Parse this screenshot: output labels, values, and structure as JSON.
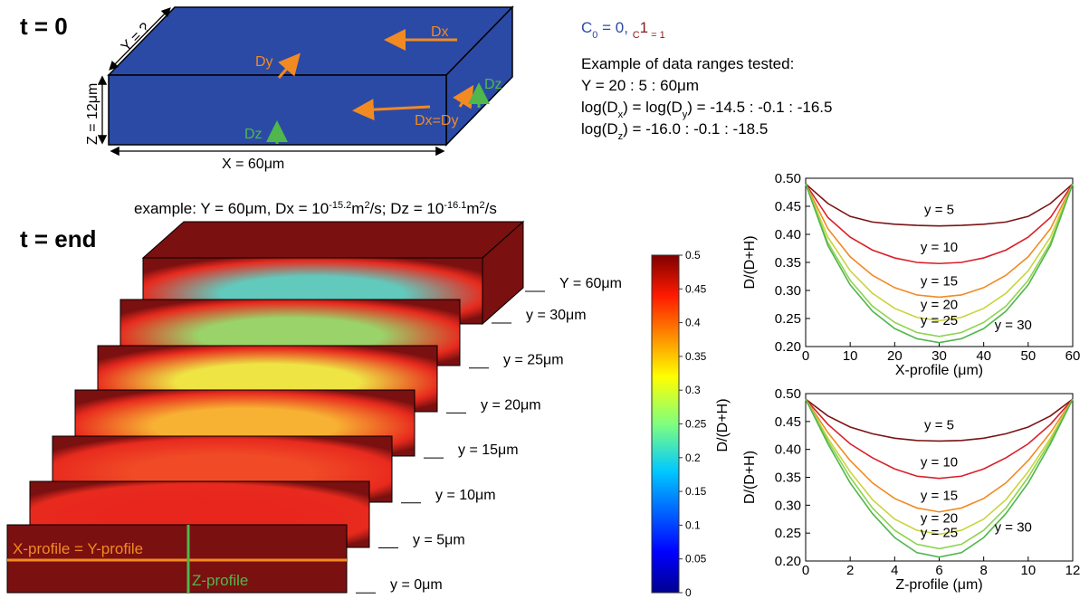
{
  "t0_label": "t = 0",
  "tend_label": "t = end",
  "box": {
    "y_label": "Y = ?",
    "z_label": "Z = 12μm",
    "x_label": "X = 60μm",
    "arrows": [
      "Dx",
      "Dy",
      "Dx=Dy",
      "Dz",
      "Dz"
    ]
  },
  "initial_conditions": [
    "C",
    "0",
    " = 0, ",
    "C",
    "1",
    " = 1"
  ],
  "ranges_title": "Example of data ranges tested:",
  "ranges": [
    [
      "Y = 20 : 5 : 60μm"
    ],
    [
      "log(D",
      "x",
      ") = log(D",
      "y",
      ") = -14.5 : -0.1 : -16.5"
    ],
    [
      "log(D",
      "z",
      ") = -16.0 : -0.1 : -18.5"
    ]
  ],
  "example": [
    "example: Y = 60μm, Dx = 10",
    "-15.2",
    "m",
    "2",
    "/s; Dz = 10",
    "-16.1",
    "m",
    "2",
    "/s"
  ],
  "slices": [
    "Y = 60μm",
    "y = 30μm",
    "y = 25μm",
    "y = 20μm",
    "y = 15μm",
    "y = 10μm",
    "y = 5μm",
    "y = 0μm"
  ],
  "profiles": {
    "x_profile": "X-profile = Y-profile",
    "z_profile": "Z-profile"
  },
  "colorbar": {
    "label": "D/(D+H)",
    "lim": [
      0,
      0.5
    ],
    "ticks": [
      0,
      0.05,
      0.1,
      0.15,
      0.2,
      0.25,
      0.3,
      0.35,
      0.4,
      0.45,
      0.5
    ]
  },
  "chart_data": [
    {
      "type": "line",
      "x_label": "X-profile (μm)",
      "y_label": "D/(D+H)",
      "x": [
        0,
        5,
        10,
        15,
        20,
        25,
        30,
        35,
        40,
        45,
        50,
        55,
        60
      ],
      "xlim": [
        0,
        60
      ],
      "xticks": [
        0,
        10,
        20,
        30,
        40,
        50,
        60
      ],
      "ylim": [
        0.2,
        0.5
      ],
      "yticks": [
        {
          "value": 0.2,
          "label": "0.20"
        },
        0.25,
        {
          "value": 0.3,
          "label": "0.30"
        },
        0.35,
        {
          "value": 0.4,
          "label": "0.40"
        },
        0.45,
        {
          "value": 0.5,
          "label": "0.50"
        }
      ],
      "series": [
        {
          "name": "y = 5",
          "color": "#7a1414",
          "values": [
            0.49,
            0.455,
            0.432,
            0.422,
            0.418,
            0.416,
            0.415,
            0.416,
            0.418,
            0.422,
            0.432,
            0.455,
            0.49
          ]
        },
        {
          "name": "y = 10",
          "color": "#d9202a",
          "values": [
            0.49,
            0.43,
            0.395,
            0.372,
            0.358,
            0.35,
            0.348,
            0.35,
            0.358,
            0.372,
            0.395,
            0.43,
            0.49
          ]
        },
        {
          "name": "y = 15",
          "color": "#f28a22",
          "values": [
            0.49,
            0.41,
            0.36,
            0.327,
            0.305,
            0.292,
            0.288,
            0.292,
            0.305,
            0.327,
            0.36,
            0.41,
            0.49
          ]
        },
        {
          "name": "y = 20",
          "color": "#c9d43c",
          "values": [
            0.49,
            0.395,
            0.335,
            0.295,
            0.268,
            0.252,
            0.246,
            0.252,
            0.268,
            0.295,
            0.335,
            0.395,
            0.49
          ]
        },
        {
          "name": "y = 25",
          "color": "#8fd24e",
          "values": [
            0.49,
            0.385,
            0.318,
            0.272,
            0.243,
            0.225,
            0.218,
            0.225,
            0.243,
            0.272,
            0.318,
            0.385,
            0.49
          ]
        },
        {
          "name": "y = 30",
          "color": "#4fb74c",
          "values": [
            0.49,
            0.38,
            0.31,
            0.263,
            0.232,
            0.214,
            0.207,
            0.214,
            0.232,
            0.263,
            0.31,
            0.38,
            0.49
          ]
        }
      ]
    },
    {
      "type": "line",
      "x_label": "Z-profile (μm)",
      "y_label": "D/(D+H)",
      "x": [
        0,
        1,
        2,
        3,
        4,
        5,
        6,
        7,
        8,
        9,
        10,
        11,
        12
      ],
      "xlim": [
        0,
        12
      ],
      "xticks": [
        0,
        2,
        4,
        6,
        8,
        10,
        12
      ],
      "ylim": [
        0.2,
        0.5
      ],
      "yticks": [
        {
          "value": 0.2,
          "label": "0.20"
        },
        0.25,
        {
          "value": 0.3,
          "label": "0.30"
        },
        0.35,
        {
          "value": 0.4,
          "label": "0.40"
        },
        0.45,
        {
          "value": 0.5,
          "label": "0.50"
        }
      ],
      "series": [
        {
          "name": "y = 5",
          "color": "#7a1414",
          "values": [
            0.49,
            0.46,
            0.44,
            0.428,
            0.42,
            0.416,
            0.415,
            0.416,
            0.42,
            0.428,
            0.44,
            0.46,
            0.49
          ]
        },
        {
          "name": "y = 10",
          "color": "#d9202a",
          "values": [
            0.49,
            0.445,
            0.41,
            0.385,
            0.365,
            0.352,
            0.348,
            0.352,
            0.365,
            0.385,
            0.41,
            0.445,
            0.49
          ]
        },
        {
          "name": "y = 15",
          "color": "#f28a22",
          "values": [
            0.49,
            0.43,
            0.38,
            0.34,
            0.312,
            0.295,
            0.288,
            0.295,
            0.312,
            0.34,
            0.38,
            0.43,
            0.49
          ]
        },
        {
          "name": "y = 20",
          "color": "#c9d43c",
          "values": [
            0.49,
            0.42,
            0.36,
            0.31,
            0.275,
            0.255,
            0.248,
            0.255,
            0.275,
            0.31,
            0.36,
            0.42,
            0.49
          ]
        },
        {
          "name": "y = 25",
          "color": "#8fd24e",
          "values": [
            0.49,
            0.415,
            0.35,
            0.295,
            0.255,
            0.23,
            0.222,
            0.23,
            0.255,
            0.295,
            0.35,
            0.415,
            0.49
          ]
        },
        {
          "name": "y = 30",
          "color": "#4fb74c",
          "values": [
            0.49,
            0.41,
            0.34,
            0.285,
            0.242,
            0.215,
            0.207,
            0.215,
            0.242,
            0.285,
            0.34,
            0.41,
            0.49
          ]
        }
      ]
    }
  ]
}
